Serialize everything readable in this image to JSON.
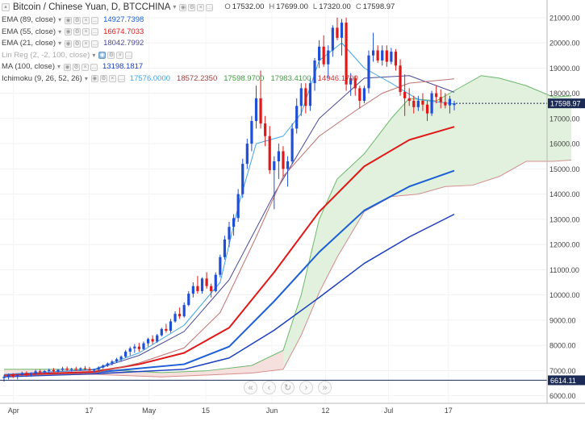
{
  "header": {
    "title": "Bitcoin / Chinese Yuan, D, BTCCHINA",
    "ohlc": [
      {
        "key": "O",
        "value": "17532.00"
      },
      {
        "key": "H",
        "value": "17699.00"
      },
      {
        "key": "L",
        "value": "17320.00"
      },
      {
        "key": "C",
        "value": "17598.97"
      }
    ]
  },
  "indicators": [
    {
      "name": "EMA (89, close)",
      "values": [
        "14927.7398"
      ],
      "colors": [
        "#1b5ed6"
      ]
    },
    {
      "name": "EMA (55, close)",
      "values": [
        "16674.7033"
      ],
      "colors": [
        "#e01818"
      ]
    },
    {
      "name": "EMA (21, close)",
      "values": [
        "18042.7992"
      ],
      "colors": [
        "#4a4a9a"
      ]
    },
    {
      "name": "Lin Reg (2, -2, 100, close)",
      "values": [],
      "colors": [],
      "dim": true
    },
    {
      "name": "MA (100, close)",
      "values": [
        "13198.1817"
      ],
      "colors": [
        "#1b3fbf"
      ]
    },
    {
      "name": "Ichimoku (9, 26, 52, 26)",
      "values": [
        "17576.0000",
        "18572.2350",
        "17598.9700",
        "17983.4100",
        "14946.1700"
      ],
      "colors": [
        "#3fa3e6",
        "#a04040",
        "#3c9a3c",
        "#4a9a4a",
        "#cc3333"
      ]
    }
  ],
  "price_axis": {
    "ticks": [
      "21000.00",
      "20000.00",
      "19000.00",
      "18000.00",
      "17000.00",
      "16000.00",
      "15000.00",
      "14000.00",
      "13000.00",
      "12000.00",
      "11000.00",
      "10000.00",
      "9000.00",
      "8000.00",
      "7000.00",
      "6000.00"
    ],
    "current_price_label": "17598.97",
    "line_label": "6614.11"
  },
  "time_axis": {
    "labels": [
      "Apr",
      "17",
      "May",
      "15",
      "Jun",
      "12",
      "Jul",
      "17"
    ]
  },
  "scroll_controls": [
    "«",
    "‹",
    "↻",
    "›",
    "»"
  ],
  "colors": {
    "up": "#1f4fd6",
    "down": "#e01818",
    "cloud_bull": "#dff0db",
    "cloud_bear": "#f8dede",
    "current_price_bg": "#1c2b55",
    "hline_bg": "#1c2b55"
  },
  "chart_data": {
    "type": "line",
    "title": "Bitcoin / Chinese Yuan, D, BTCCHINA",
    "ylim": [
      5700,
      21700
    ],
    "x_range": [
      0,
      100
    ],
    "note_x": "index = trading day from ~25 Mar to ~28 Jul",
    "candles": [
      [
        0,
        6700,
        6830,
        6560,
        6750
      ],
      [
        1,
        6750,
        6880,
        6650,
        6820
      ],
      [
        2,
        6820,
        6900,
        6700,
        6760
      ],
      [
        3,
        6760,
        6860,
        6650,
        6830
      ],
      [
        4,
        6830,
        6960,
        6760,
        6900
      ],
      [
        5,
        6900,
        6970,
        6780,
        6840
      ],
      [
        6,
        6840,
        6930,
        6750,
        6880
      ],
      [
        7,
        6880,
        7030,
        6820,
        6970
      ],
      [
        8,
        6970,
        7050,
        6880,
        6930
      ],
      [
        9,
        6930,
        7020,
        6850,
        6980
      ],
      [
        10,
        6980,
        7080,
        6900,
        7020
      ],
      [
        11,
        7020,
        7100,
        6930,
        6970
      ],
      [
        12,
        6970,
        7060,
        6900,
        7030
      ],
      [
        13,
        7030,
        7150,
        6980,
        7080
      ],
      [
        14,
        7080,
        7160,
        6990,
        7030
      ],
      [
        15,
        7030,
        7110,
        6960,
        7070
      ],
      [
        16,
        7070,
        7150,
        6990,
        7040
      ],
      [
        17,
        7040,
        7130,
        6980,
        7090
      ],
      [
        18,
        7090,
        7180,
        7010,
        7060
      ],
      [
        19,
        7060,
        7140,
        6990,
        7000
      ],
      [
        20,
        7000,
        7080,
        6930,
        7050
      ],
      [
        21,
        7050,
        7170,
        6990,
        7120
      ],
      [
        22,
        7120,
        7240,
        7060,
        7200
      ],
      [
        23,
        7200,
        7320,
        7140,
        7280
      ],
      [
        24,
        7280,
        7420,
        7200,
        7360
      ],
      [
        25,
        7360,
        7500,
        7300,
        7450
      ],
      [
        26,
        7450,
        7600,
        7350,
        7550
      ],
      [
        27,
        7550,
        7820,
        7500,
        7750
      ],
      [
        28,
        7750,
        7950,
        7600,
        7880
      ],
      [
        29,
        7880,
        8050,
        7700,
        7950
      ],
      [
        30,
        7950,
        8100,
        7750,
        7850
      ],
      [
        31,
        7850,
        8150,
        7800,
        8080
      ],
      [
        32,
        8080,
        8300,
        7950,
        8250
      ],
      [
        33,
        8250,
        8400,
        8050,
        8150
      ],
      [
        34,
        8150,
        8450,
        8100,
        8400
      ],
      [
        35,
        8400,
        8700,
        8350,
        8650
      ],
      [
        36,
        8650,
        8850,
        8500,
        8580
      ],
      [
        37,
        8580,
        9050,
        8500,
        8950
      ],
      [
        38,
        8950,
        9350,
        8900,
        9250
      ],
      [
        39,
        9250,
        9500,
        9050,
        9150
      ],
      [
        40,
        9150,
        9700,
        9100,
        9600
      ],
      [
        41,
        9600,
        10150,
        9550,
        10050
      ],
      [
        42,
        10050,
        10500,
        9900,
        10350
      ],
      [
        43,
        10350,
        10750,
        10050,
        10150
      ],
      [
        44,
        10150,
        10700,
        10050,
        10650
      ],
      [
        45,
        10650,
        10900,
        10250,
        10350
      ],
      [
        46,
        10350,
        10450,
        9900,
        10150
      ],
      [
        47,
        10150,
        10900,
        10100,
        10800
      ],
      [
        48,
        10800,
        11600,
        10700,
        11500
      ],
      [
        49,
        11500,
        12350,
        11400,
        12200
      ],
      [
        50,
        12200,
        12900,
        11900,
        12700
      ],
      [
        51,
        12700,
        13200,
        12350,
        13050
      ],
      [
        52,
        13050,
        14200,
        12900,
        14000
      ],
      [
        53,
        14000,
        15400,
        13850,
        15200
      ],
      [
        54,
        15200,
        16200,
        15000,
        16000
      ],
      [
        55,
        16000,
        17100,
        15700,
        16900
      ],
      [
        56,
        16900,
        18300,
        16600,
        17800
      ],
      [
        57,
        17800,
        18900,
        16600,
        16800
      ],
      [
        58,
        16800,
        17100,
        15900,
        16300
      ],
      [
        59,
        16300,
        16700,
        14800,
        14950
      ],
      [
        60,
        14950,
        15500,
        13400,
        15300
      ],
      [
        61,
        15300,
        16000,
        14600,
        15700
      ],
      [
        62,
        15700,
        15900,
        14700,
        15000
      ],
      [
        63,
        15000,
        15500,
        14300,
        15300
      ],
      [
        64,
        15300,
        16800,
        15200,
        16600
      ],
      [
        65,
        16600,
        17800,
        16400,
        17500
      ],
      [
        66,
        17500,
        18400,
        17100,
        18200
      ],
      [
        67,
        18200,
        18400,
        17200,
        17500
      ],
      [
        68,
        17500,
        18600,
        17300,
        18400
      ],
      [
        69,
        18400,
        19400,
        18100,
        19300
      ],
      [
        70,
        19300,
        20100,
        19000,
        19850
      ],
      [
        71,
        19850,
        20300,
        19050,
        19150
      ],
      [
        72,
        19150,
        19900,
        18600,
        19700
      ],
      [
        73,
        19700,
        20700,
        19450,
        20600
      ],
      [
        74,
        20600,
        21000,
        20100,
        20200
      ],
      [
        75,
        20200,
        20950,
        19500,
        20800
      ],
      [
        76,
        20800,
        21000,
        18100,
        18350
      ],
      [
        77,
        18350,
        18800,
        17900,
        18600
      ],
      [
        78,
        18600,
        18700,
        17900,
        18200
      ],
      [
        79,
        18200,
        18300,
        17400,
        17700
      ],
      [
        80,
        17700,
        18300,
        17600,
        18200
      ],
      [
        81,
        18200,
        19700,
        18000,
        19500
      ],
      [
        82,
        19500,
        20400,
        19250,
        19700
      ],
      [
        83,
        19700,
        19900,
        19200,
        19300
      ],
      [
        84,
        19300,
        19900,
        19100,
        19700
      ],
      [
        85,
        19700,
        19900,
        19050,
        19250
      ],
      [
        86,
        19250,
        19800,
        19150,
        19650
      ],
      [
        87,
        19650,
        19750,
        18900,
        19100
      ],
      [
        88,
        19100,
        19350,
        17900,
        18050
      ],
      [
        89,
        18050,
        18750,
        17100,
        17800
      ],
      [
        90,
        17800,
        18200,
        17500,
        17700
      ],
      [
        91,
        17700,
        17900,
        17200,
        17450
      ],
      [
        92,
        17450,
        17900,
        17300,
        17700
      ],
      [
        93,
        17700,
        18000,
        17300,
        17550
      ],
      [
        94,
        17550,
        17700,
        16900,
        17200
      ],
      [
        95,
        17200,
        18100,
        17100,
        18000
      ],
      [
        96,
        18000,
        18300,
        17600,
        17850
      ],
      [
        97,
        17850,
        18150,
        17400,
        17650
      ],
      [
        98,
        17650,
        18000,
        17400,
        17520
      ],
      [
        99,
        17520,
        17900,
        17200,
        17780
      ],
      [
        100,
        17532,
        17699,
        17320,
        17598.97
      ]
    ],
    "series": [
      {
        "name": "EMA (89, close)",
        "color": "#1b5ed6",
        "width": 2,
        "points": [
          [
            0,
            6800
          ],
          [
            20,
            6920
          ],
          [
            40,
            7250
          ],
          [
            50,
            7950
          ],
          [
            60,
            9750
          ],
          [
            70,
            11700
          ],
          [
            80,
            13350
          ],
          [
            90,
            14300
          ],
          [
            100,
            14930
          ]
        ]
      },
      {
        "name": "EMA (55, close)",
        "color": "#e01818",
        "width": 2,
        "points": [
          [
            0,
            6820
          ],
          [
            20,
            6950
          ],
          [
            30,
            7250
          ],
          [
            40,
            7700
          ],
          [
            50,
            8700
          ],
          [
            60,
            10900
          ],
          [
            70,
            13300
          ],
          [
            80,
            15100
          ],
          [
            90,
            16150
          ],
          [
            100,
            16670
          ]
        ]
      },
      {
        "name": "EMA (21, close)",
        "color": "#4a4a9a",
        "width": 1,
        "points": [
          [
            0,
            6850
          ],
          [
            20,
            7030
          ],
          [
            30,
            7600
          ],
          [
            40,
            8550
          ],
          [
            50,
            10600
          ],
          [
            60,
            14000
          ],
          [
            70,
            17000
          ],
          [
            80,
            18600
          ],
          [
            90,
            18700
          ],
          [
            100,
            18040
          ]
        ]
      },
      {
        "name": "MA (100, close)",
        "color": "#1b3fbf",
        "width": 1.5,
        "points": [
          [
            0,
            6750
          ],
          [
            20,
            6870
          ],
          [
            40,
            7050
          ],
          [
            50,
            7500
          ],
          [
            60,
            8600
          ],
          [
            70,
            9900
          ],
          [
            80,
            11250
          ],
          [
            90,
            12300
          ],
          [
            100,
            13200
          ]
        ]
      },
      {
        "name": "Ichimoku (9, 26, 52, 26)",
        "color": "#3fa3e6",
        "width": 1,
        "points": [
          [
            0,
            6850
          ],
          [
            20,
            7050
          ],
          [
            30,
            7700
          ],
          [
            40,
            8800
          ],
          [
            48,
            10500
          ],
          [
            52,
            13500
          ],
          [
            56,
            16000
          ],
          [
            62,
            16300
          ],
          [
            66,
            17200
          ],
          [
            70,
            19300
          ],
          [
            75,
            20000
          ],
          [
            80,
            19000
          ],
          [
            86,
            18400
          ],
          [
            92,
            17750
          ],
          [
            100,
            17576
          ]
        ]
      },
      {
        "name": "Ichimoku (9, 26, 52, 26)",
        "color": "#c07070",
        "width": 1,
        "points": [
          [
            0,
            6780
          ],
          [
            20,
            6900
          ],
          [
            30,
            7300
          ],
          [
            40,
            7900
          ],
          [
            48,
            9300
          ],
          [
            56,
            12300
          ],
          [
            62,
            14700
          ],
          [
            70,
            16300
          ],
          [
            78,
            17300
          ],
          [
            84,
            18000
          ],
          [
            90,
            18400
          ],
          [
            100,
            18572
          ]
        ]
      }
    ],
    "cloud": {
      "span_a": [
        [
          0,
          7050
        ],
        [
          20,
          7050
        ],
        [
          35,
          6920
        ],
        [
          45,
          6990
        ],
        [
          55,
          7200
        ],
        [
          62,
          7800
        ],
        [
          66,
          10000
        ],
        [
          70,
          13000
        ],
        [
          74,
          14600
        ],
        [
          80,
          15600
        ],
        [
          86,
          17000
        ],
        [
          90,
          17800
        ],
        [
          96,
          17700
        ],
        [
          101,
          18200
        ],
        [
          106,
          18700
        ],
        [
          110,
          18600
        ],
        [
          116,
          18300
        ],
        [
          122,
          17850
        ],
        [
          126,
          17900
        ]
      ],
      "span_b": [
        [
          0,
          6780
        ],
        [
          20,
          6850
        ],
        [
          35,
          6750
        ],
        [
          45,
          6820
        ],
        [
          55,
          6900
        ],
        [
          62,
          7050
        ],
        [
          66,
          8400
        ],
        [
          70,
          10100
        ],
        [
          74,
          11500
        ],
        [
          80,
          13300
        ],
        [
          86,
          13900
        ],
        [
          92,
          14000
        ],
        [
          98,
          14300
        ],
        [
          104,
          14350
        ],
        [
          110,
          14700
        ],
        [
          116,
          15300
        ],
        [
          122,
          15300
        ],
        [
          126,
          15350
        ]
      ]
    },
    "current_price": 17598.97,
    "horizontal_line": 6614.11
  }
}
